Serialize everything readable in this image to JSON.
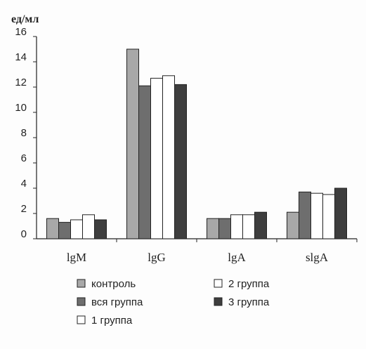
{
  "chart_data": {
    "type": "bar",
    "ylabel": "ед/мл",
    "xlabel": "",
    "title": "",
    "ylim": [
      0,
      16
    ],
    "yticks": [
      0,
      2,
      4,
      6,
      8,
      10,
      12,
      14,
      16
    ],
    "categories": [
      "lgM",
      "lgG",
      "lgA",
      "slgA"
    ],
    "grid": false,
    "legend_position": "bottom",
    "series": [
      {
        "name": "контроль",
        "color": "#a8a8a8",
        "values": [
          1.6,
          15.0,
          1.6,
          2.1
        ]
      },
      {
        "name": "вся группа",
        "color": "#6e6e6e",
        "values": [
          1.3,
          12.1,
          1.6,
          3.7
        ]
      },
      {
        "name": "1 группа",
        "color": "#ffffff",
        "values": [
          1.5,
          12.7,
          1.9,
          3.6
        ]
      },
      {
        "name": "2 группа",
        "color": "#ffffff",
        "values": [
          1.9,
          12.9,
          1.9,
          3.5
        ]
      },
      {
        "name": "3 группа",
        "color": "#3e3e3e",
        "values": [
          1.5,
          12.2,
          2.1,
          4.0
        ]
      }
    ]
  }
}
